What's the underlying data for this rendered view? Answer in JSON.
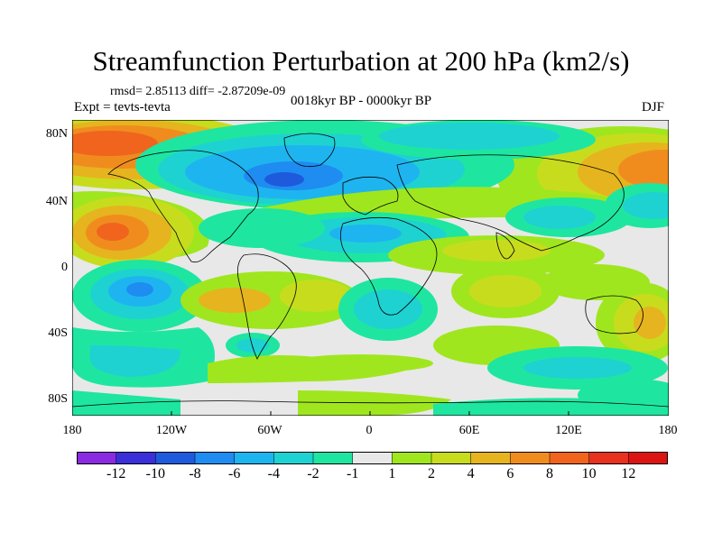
{
  "title": "Streamfunction Perturbation at 200 hPa (km2/s)",
  "stats": "rmsd= 2.85113 diff= -2.87209e-09",
  "expt": "Expt = tevts-tevta",
  "period": "0018kyr BP - 0000kyr BP",
  "season": "DJF",
  "lat_labels": [
    "80N",
    "40N",
    "0",
    "40S",
    "80S"
  ],
  "lon_labels": [
    "180",
    "120W",
    "60W",
    "0",
    "60E",
    "120E",
    "180"
  ],
  "colorbar": {
    "labels": [
      "-12",
      "-10",
      "-8",
      "-6",
      "-4",
      "-2",
      "-1",
      "1",
      "2",
      "4",
      "6",
      "8",
      "10",
      "12"
    ],
    "colors": [
      "#8a2be2",
      "#3a2fd8",
      "#1e5adc",
      "#1e8cf0",
      "#1eb4f0",
      "#1ed2d2",
      "#1ee6a0",
      "#e8e8e8",
      "#a0e61e",
      "#c8dc1e",
      "#e6b41e",
      "#f08c1e",
      "#f0641e",
      "#e6321e",
      "#dc1414"
    ]
  },
  "colors": {
    "background": "#e8e8e8",
    "coastline": "#000000"
  }
}
